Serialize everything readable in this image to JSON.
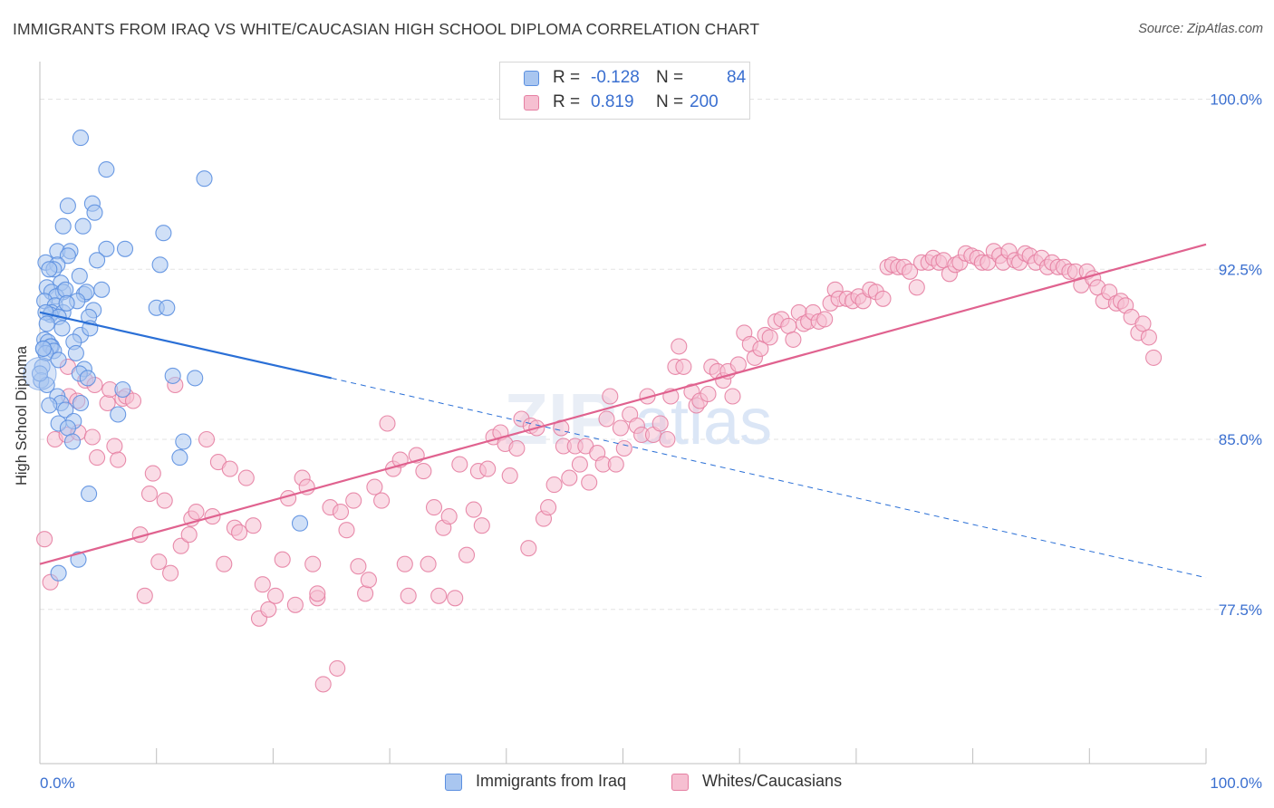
{
  "header": {
    "title": "IMMIGRANTS FROM IRAQ VS WHITE/CAUCASIAN HIGH SCHOOL DIPLOMA CORRELATION CHART",
    "source": "Source: ZipAtlas.com"
  },
  "watermark": "ZIPatlas",
  "legend": {
    "rows": [
      {
        "r_label": "R =",
        "r_value": "-0.128",
        "n_label": "N =",
        "n_value": "84"
      },
      {
        "r_label": "R =",
        "r_value": "0.819",
        "n_label": "N =",
        "n_value": "200"
      }
    ]
  },
  "bottom_legend": {
    "items": [
      {
        "label": "Immigrants from Iraq"
      },
      {
        "label": "Whites/Caucasians"
      }
    ]
  },
  "colors": {
    "blue_fill": "#a9c6f0",
    "blue_stroke": "#5b8fe0",
    "blue_line": "#2a6fd6",
    "pink_fill": "#f6bfd1",
    "pink_stroke": "#e57fa2",
    "pink_line": "#e0628f",
    "tick_label": "#3a6fd0",
    "grid": "#e3e3e3"
  },
  "chart_data": {
    "type": "scatter",
    "title": "IMMIGRANTS FROM IRAQ VS WHITE/CAUCASIAN HIGH SCHOOL DIPLOMA CORRELATION CHART",
    "xlabel": "",
    "ylabel": "High School Diploma",
    "xlim": [
      0,
      100
    ],
    "ylim": [
      70.7,
      101.5
    ],
    "x_tick_labels": [
      "0.0%",
      "100.0%"
    ],
    "y_ticks": [
      77.5,
      85.0,
      92.5,
      100.0
    ],
    "y_tick_labels": [
      "77.5%",
      "85.0%",
      "92.5%",
      "100.0%"
    ],
    "grid": true,
    "legend_position": "top-center",
    "series": [
      {
        "name": "Immigrants from Iraq",
        "color": "#a9c6f0",
        "r": -0.128,
        "n": 84,
        "trend": {
          "x0": 0,
          "y0": 90.6,
          "x1_solid": 25,
          "y1_solid": 87.7,
          "x1": 100,
          "y1": 78.9
        },
        "points": [
          [
            3.5,
            98.3
          ],
          [
            5.7,
            96.9
          ],
          [
            14.1,
            96.5
          ],
          [
            2.4,
            95.3
          ],
          [
            4.5,
            95.4
          ],
          [
            4.7,
            95.0
          ],
          [
            2.0,
            94.4
          ],
          [
            3.7,
            94.4
          ],
          [
            10.6,
            94.1
          ],
          [
            1.5,
            93.3
          ],
          [
            2.6,
            93.3
          ],
          [
            5.7,
            93.4
          ],
          [
            7.3,
            93.4
          ],
          [
            2.4,
            93.1
          ],
          [
            4.9,
            92.9
          ],
          [
            0.5,
            92.8
          ],
          [
            1.5,
            92.7
          ],
          [
            1.2,
            92.5
          ],
          [
            10.3,
            92.7
          ],
          [
            0.8,
            92.5
          ],
          [
            3.4,
            92.2
          ],
          [
            1.8,
            91.9
          ],
          [
            0.6,
            91.7
          ],
          [
            1.0,
            91.5
          ],
          [
            2.0,
            91.5
          ],
          [
            1.4,
            91.3
          ],
          [
            2.2,
            91.6
          ],
          [
            3.8,
            91.4
          ],
          [
            4.0,
            91.5
          ],
          [
            5.3,
            91.6
          ],
          [
            3.2,
            91.1
          ],
          [
            0.4,
            91.1
          ],
          [
            1.3,
            90.9
          ],
          [
            1.0,
            90.6
          ],
          [
            2.0,
            90.6
          ],
          [
            0.9,
            90.5
          ],
          [
            1.6,
            90.4
          ],
          [
            0.5,
            90.6
          ],
          [
            4.6,
            90.7
          ],
          [
            4.2,
            90.4
          ],
          [
            10.0,
            90.8
          ],
          [
            10.9,
            90.8
          ],
          [
            0.6,
            90.1
          ],
          [
            1.9,
            89.9
          ],
          [
            3.5,
            89.6
          ],
          [
            4.3,
            89.9
          ],
          [
            0.4,
            89.4
          ],
          [
            0.7,
            89.3
          ],
          [
            1.0,
            89.1
          ],
          [
            2.9,
            89.3
          ],
          [
            0.3,
            89.0
          ],
          [
            0.9,
            89.1
          ],
          [
            1.2,
            88.9
          ],
          [
            0.5,
            88.8
          ],
          [
            3.1,
            88.8
          ],
          [
            0.2,
            88.2
          ],
          [
            1.6,
            88.5
          ],
          [
            3.8,
            88.1
          ],
          [
            3.4,
            87.9
          ],
          [
            4.1,
            87.7
          ],
          [
            11.4,
            87.8
          ],
          [
            13.3,
            87.7
          ],
          [
            0.1,
            87.6
          ],
          [
            0.6,
            87.4
          ],
          [
            1.5,
            86.9
          ],
          [
            1.8,
            86.6
          ],
          [
            0.8,
            86.5
          ],
          [
            3.5,
            86.6
          ],
          [
            7.1,
            87.2
          ],
          [
            6.7,
            86.1
          ],
          [
            2.2,
            86.3
          ],
          [
            2.9,
            85.8
          ],
          [
            1.6,
            85.7
          ],
          [
            2.4,
            85.5
          ],
          [
            2.8,
            84.9
          ],
          [
            12.3,
            84.9
          ],
          [
            12.0,
            84.2
          ],
          [
            4.2,
            82.6
          ],
          [
            22.3,
            81.3
          ],
          [
            3.3,
            79.7
          ],
          [
            1.6,
            79.1
          ],
          [
            0.0,
            87.9
          ],
          [
            0.3,
            89.0
          ],
          [
            2.3,
            91.0
          ]
        ]
      },
      {
        "name": "Whites/Caucasians",
        "color": "#f6bfd1",
        "r": 0.819,
        "n": 200,
        "trend": {
          "x0": 0,
          "y0": 79.5,
          "x1": 100,
          "y1": 93.6
        },
        "points": [
          [
            0.4,
            80.6
          ],
          [
            0.9,
            78.7
          ],
          [
            1.3,
            85.0
          ],
          [
            2.3,
            85.2
          ],
          [
            2.4,
            88.2
          ],
          [
            2.5,
            86.9
          ],
          [
            3.2,
            86.7
          ],
          [
            3.3,
            85.3
          ],
          [
            3.9,
            87.6
          ],
          [
            4.5,
            85.1
          ],
          [
            4.7,
            87.4
          ],
          [
            4.9,
            84.2
          ],
          [
            5.8,
            86.6
          ],
          [
            6.0,
            87.2
          ],
          [
            6.4,
            84.7
          ],
          [
            6.7,
            84.1
          ],
          [
            7.1,
            86.8
          ],
          [
            7.4,
            86.9
          ],
          [
            8.0,
            86.7
          ],
          [
            8.6,
            80.8
          ],
          [
            9.0,
            78.1
          ],
          [
            9.4,
            82.6
          ],
          [
            9.7,
            83.5
          ],
          [
            10.2,
            79.6
          ],
          [
            10.7,
            82.3
          ],
          [
            11.2,
            79.1
          ],
          [
            11.6,
            87.4
          ],
          [
            12.1,
            80.3
          ],
          [
            12.8,
            80.8
          ],
          [
            13.0,
            81.5
          ],
          [
            13.4,
            81.8
          ],
          [
            14.3,
            85.0
          ],
          [
            14.8,
            81.6
          ],
          [
            15.3,
            84.0
          ],
          [
            15.8,
            79.5
          ],
          [
            16.3,
            83.7
          ],
          [
            16.7,
            81.1
          ],
          [
            17.1,
            80.9
          ],
          [
            17.7,
            83.3
          ],
          [
            18.3,
            81.2
          ],
          [
            18.8,
            77.1
          ],
          [
            19.1,
            78.6
          ],
          [
            19.6,
            77.5
          ],
          [
            20.2,
            78.1
          ],
          [
            20.8,
            79.7
          ],
          [
            21.3,
            82.4
          ],
          [
            21.9,
            77.7
          ],
          [
            22.5,
            83.3
          ],
          [
            22.9,
            82.9
          ],
          [
            23.4,
            79.5
          ],
          [
            23.8,
            78.0
          ],
          [
            24.3,
            74.2
          ],
          [
            24.9,
            82.0
          ],
          [
            25.5,
            74.9
          ],
          [
            25.8,
            81.8
          ],
          [
            26.3,
            81.0
          ],
          [
            26.9,
            82.3
          ],
          [
            27.3,
            79.4
          ],
          [
            27.9,
            78.2
          ],
          [
            28.2,
            78.8
          ],
          [
            28.7,
            82.9
          ],
          [
            29.3,
            82.3
          ],
          [
            29.8,
            85.7
          ],
          [
            30.3,
            83.7
          ],
          [
            30.9,
            84.1
          ],
          [
            31.3,
            79.5
          ],
          [
            31.6,
            78.1
          ],
          [
            32.3,
            84.3
          ],
          [
            32.9,
            83.6
          ],
          [
            33.3,
            79.5
          ],
          [
            33.8,
            82.0
          ],
          [
            34.2,
            78.1
          ],
          [
            34.6,
            81.1
          ],
          [
            35.1,
            81.6
          ],
          [
            35.6,
            78.0
          ],
          [
            36.0,
            83.9
          ],
          [
            36.6,
            79.9
          ],
          [
            37.2,
            81.9
          ],
          [
            37.6,
            83.6
          ],
          [
            37.9,
            81.2
          ],
          [
            38.4,
            83.7
          ],
          [
            38.9,
            85.1
          ],
          [
            39.5,
            85.3
          ],
          [
            39.9,
            84.8
          ],
          [
            40.3,
            83.4
          ],
          [
            40.9,
            84.6
          ],
          [
            41.3,
            85.9
          ],
          [
            41.9,
            80.2
          ],
          [
            42.1,
            85.6
          ],
          [
            42.6,
            85.5
          ],
          [
            43.2,
            81.5
          ],
          [
            43.6,
            82.0
          ],
          [
            44.1,
            83.0
          ],
          [
            44.7,
            85.5
          ],
          [
            44.9,
            84.7
          ],
          [
            45.4,
            83.3
          ],
          [
            45.9,
            84.7
          ],
          [
            46.3,
            83.9
          ],
          [
            46.8,
            84.7
          ],
          [
            47.1,
            83.1
          ],
          [
            47.8,
            84.4
          ],
          [
            48.3,
            83.9
          ],
          [
            48.6,
            85.9
          ],
          [
            48.9,
            86.9
          ],
          [
            49.4,
            83.9
          ],
          [
            49.8,
            85.5
          ],
          [
            50.1,
            84.6
          ],
          [
            50.6,
            86.1
          ],
          [
            51.2,
            85.6
          ],
          [
            51.6,
            85.2
          ],
          [
            52.1,
            86.9
          ],
          [
            52.6,
            85.2
          ],
          [
            53.2,
            85.7
          ],
          [
            53.8,
            85.0
          ],
          [
            54.1,
            86.9
          ],
          [
            54.5,
            88.2
          ],
          [
            54.8,
            89.1
          ],
          [
            55.2,
            88.2
          ],
          [
            55.9,
            87.1
          ],
          [
            56.3,
            86.5
          ],
          [
            56.6,
            86.7
          ],
          [
            57.3,
            87.0
          ],
          [
            57.6,
            88.2
          ],
          [
            58.1,
            88.0
          ],
          [
            58.6,
            87.6
          ],
          [
            59.0,
            88.0
          ],
          [
            59.4,
            86.9
          ],
          [
            59.9,
            88.3
          ],
          [
            60.4,
            89.7
          ],
          [
            60.9,
            89.2
          ],
          [
            61.3,
            88.6
          ],
          [
            61.8,
            89.0
          ],
          [
            62.2,
            89.6
          ],
          [
            62.6,
            89.5
          ],
          [
            63.1,
            90.2
          ],
          [
            63.6,
            90.3
          ],
          [
            64.2,
            90.0
          ],
          [
            64.6,
            89.4
          ],
          [
            65.1,
            90.6
          ],
          [
            65.5,
            90.1
          ],
          [
            65.9,
            90.2
          ],
          [
            66.3,
            90.6
          ],
          [
            66.8,
            90.2
          ],
          [
            67.3,
            90.3
          ],
          [
            67.8,
            91.0
          ],
          [
            68.2,
            91.6
          ],
          [
            68.5,
            91.2
          ],
          [
            69.2,
            91.2
          ],
          [
            69.7,
            91.1
          ],
          [
            70.2,
            91.3
          ],
          [
            70.6,
            91.1
          ],
          [
            71.2,
            91.6
          ],
          [
            71.7,
            91.5
          ],
          [
            72.3,
            91.2
          ],
          [
            72.7,
            92.6
          ],
          [
            73.1,
            92.7
          ],
          [
            73.6,
            92.6
          ],
          [
            74.1,
            92.6
          ],
          [
            74.6,
            92.4
          ],
          [
            75.2,
            91.7
          ],
          [
            75.6,
            92.8
          ],
          [
            76.2,
            92.8
          ],
          [
            76.6,
            93.0
          ],
          [
            77.1,
            92.8
          ],
          [
            77.5,
            92.9
          ],
          [
            78.0,
            92.3
          ],
          [
            78.5,
            92.7
          ],
          [
            78.9,
            92.8
          ],
          [
            79.4,
            93.2
          ],
          [
            79.9,
            93.1
          ],
          [
            80.4,
            93.0
          ],
          [
            80.8,
            92.8
          ],
          [
            81.3,
            92.8
          ],
          [
            81.8,
            93.3
          ],
          [
            82.3,
            93.1
          ],
          [
            82.6,
            92.8
          ],
          [
            83.1,
            93.3
          ],
          [
            83.6,
            92.9
          ],
          [
            84.0,
            92.8
          ],
          [
            84.5,
            93.2
          ],
          [
            84.9,
            93.1
          ],
          [
            85.4,
            92.8
          ],
          [
            85.9,
            93.0
          ],
          [
            86.4,
            92.6
          ],
          [
            86.8,
            92.8
          ],
          [
            87.3,
            92.6
          ],
          [
            87.8,
            92.6
          ],
          [
            88.3,
            92.4
          ],
          [
            88.8,
            92.4
          ],
          [
            89.3,
            91.8
          ],
          [
            89.8,
            92.4
          ],
          [
            90.3,
            92.1
          ],
          [
            90.7,
            91.7
          ],
          [
            91.2,
            91.1
          ],
          [
            91.7,
            91.5
          ],
          [
            92.3,
            91.0
          ],
          [
            92.7,
            91.1
          ],
          [
            93.1,
            90.9
          ],
          [
            93.6,
            90.4
          ],
          [
            94.2,
            89.7
          ],
          [
            94.6,
            90.1
          ],
          [
            95.1,
            89.5
          ],
          [
            95.5,
            88.6
          ],
          [
            23.8,
            78.2
          ]
        ]
      }
    ]
  }
}
